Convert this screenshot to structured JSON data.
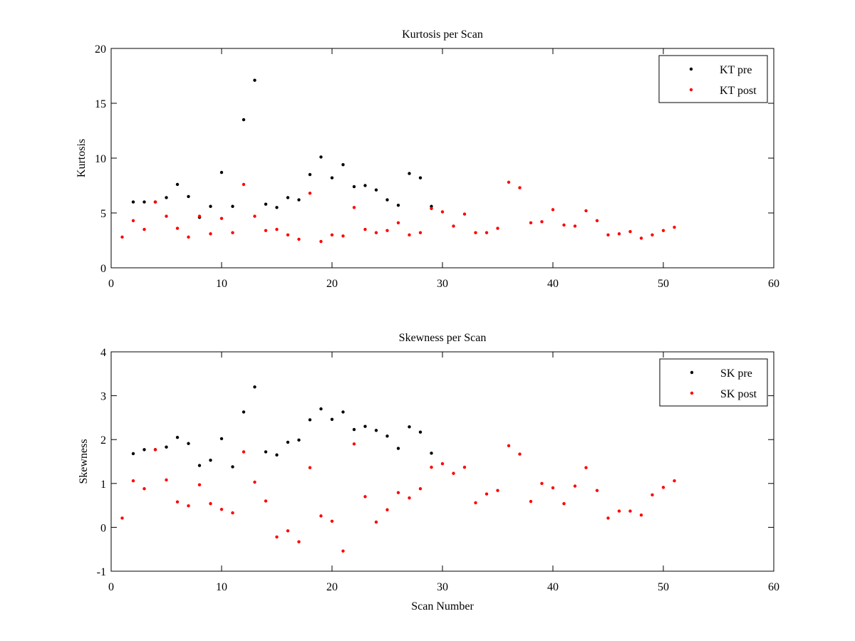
{
  "chart_data": [
    {
      "type": "scatter",
      "title": "Kurtosis per Scan",
      "xlabel": "",
      "ylabel": "Kurtosis",
      "xlim": [
        0,
        60
      ],
      "ylim": [
        0,
        20
      ],
      "xticks": [
        0,
        10,
        20,
        30,
        40,
        50,
        60
      ],
      "yticks": [
        0,
        5,
        10,
        15,
        20
      ],
      "grid": false,
      "legend_position": "top-right",
      "series": [
        {
          "name": "KT pre",
          "color": "#000000",
          "x": [
            2,
            3,
            4,
            5,
            6,
            7,
            8,
            9,
            10,
            11,
            12,
            13,
            14,
            15,
            16,
            17,
            18,
            19,
            20,
            21,
            22,
            23,
            24,
            25,
            26,
            27,
            28,
            29
          ],
          "y": [
            6.0,
            6.0,
            6.0,
            6.4,
            7.6,
            6.5,
            4.6,
            5.6,
            8.7,
            5.6,
            13.5,
            17.1,
            5.8,
            5.5,
            6.4,
            6.2,
            8.5,
            10.1,
            8.2,
            9.4,
            7.4,
            7.5,
            7.1,
            6.2,
            5.7,
            8.6,
            8.2,
            5.6
          ]
        },
        {
          "name": "KT post",
          "color": "#ff0000",
          "x": [
            1,
            2,
            3,
            4,
            5,
            6,
            7,
            8,
            9,
            10,
            11,
            12,
            13,
            14,
            15,
            16,
            17,
            18,
            19,
            20,
            21,
            22,
            23,
            24,
            25,
            26,
            27,
            28,
            29,
            30,
            31,
            32,
            33,
            34,
            35,
            36,
            37,
            38,
            39,
            40,
            41,
            42,
            43,
            44,
            45,
            46,
            47,
            48,
            49,
            50,
            51
          ],
          "y": [
            2.8,
            4.3,
            3.5,
            6.0,
            4.7,
            3.6,
            2.8,
            4.7,
            3.1,
            4.5,
            3.2,
            7.6,
            4.7,
            3.4,
            3.5,
            3.0,
            2.6,
            6.8,
            2.4,
            3.0,
            2.9,
            5.5,
            3.5,
            3.2,
            3.4,
            4.1,
            3.0,
            3.2,
            5.4,
            5.1,
            3.8,
            4.9,
            3.2,
            3.2,
            3.6,
            7.8,
            7.3,
            4.1,
            4.2,
            5.3,
            3.9,
            3.8,
            5.2,
            4.3,
            3.0,
            3.1,
            3.3,
            2.7,
            3.0,
            3.4,
            3.7
          ]
        }
      ]
    },
    {
      "type": "scatter",
      "title": "Skewness per Scan",
      "xlabel": "Scan Number",
      "ylabel": "Skewness",
      "xlim": [
        0,
        60
      ],
      "ylim": [
        -1,
        4
      ],
      "xticks": [
        0,
        10,
        20,
        30,
        40,
        50,
        60
      ],
      "yticks": [
        -1,
        0,
        1,
        2,
        3,
        4
      ],
      "grid": false,
      "legend_position": "top-right",
      "series": [
        {
          "name": "SK pre",
          "color": "#000000",
          "x": [
            2,
            3,
            4,
            5,
            6,
            7,
            8,
            9,
            10,
            11,
            12,
            13,
            14,
            15,
            16,
            17,
            18,
            19,
            20,
            21,
            22,
            23,
            24,
            25,
            26,
            27,
            28,
            29
          ],
          "y": [
            1.68,
            1.77,
            1.77,
            1.83,
            2.05,
            1.91,
            1.41,
            1.53,
            2.02,
            1.38,
            2.63,
            3.2,
            1.72,
            1.65,
            1.94,
            1.99,
            2.45,
            2.7,
            2.46,
            2.63,
            2.23,
            2.3,
            2.21,
            2.08,
            1.8,
            2.29,
            2.17,
            1.69
          ]
        },
        {
          "name": "SK post",
          "color": "#ff0000",
          "x": [
            1,
            2,
            3,
            4,
            5,
            6,
            7,
            8,
            9,
            10,
            11,
            12,
            13,
            14,
            15,
            16,
            17,
            18,
            19,
            20,
            21,
            22,
            23,
            24,
            25,
            26,
            27,
            28,
            29,
            30,
            31,
            32,
            33,
            34,
            35,
            36,
            37,
            38,
            39,
            40,
            41,
            42,
            43,
            44,
            45,
            46,
            47,
            48,
            49,
            50,
            51
          ],
          "y": [
            0.21,
            1.06,
            0.88,
            1.77,
            1.08,
            0.58,
            0.49,
            0.97,
            0.54,
            0.41,
            0.33,
            1.72,
            1.03,
            0.6,
            -0.22,
            -0.08,
            -0.33,
            1.36,
            0.26,
            0.14,
            -0.54,
            1.9,
            0.7,
            0.12,
            0.4,
            0.79,
            0.67,
            0.88,
            1.37,
            1.45,
            1.23,
            1.37,
            0.56,
            0.76,
            0.84,
            1.86,
            1.67,
            0.59,
            1.0,
            0.9,
            0.54,
            0.94,
            1.36,
            0.84,
            0.21,
            0.37,
            0.37,
            0.28,
            0.74,
            0.91,
            1.06
          ]
        }
      ]
    }
  ]
}
